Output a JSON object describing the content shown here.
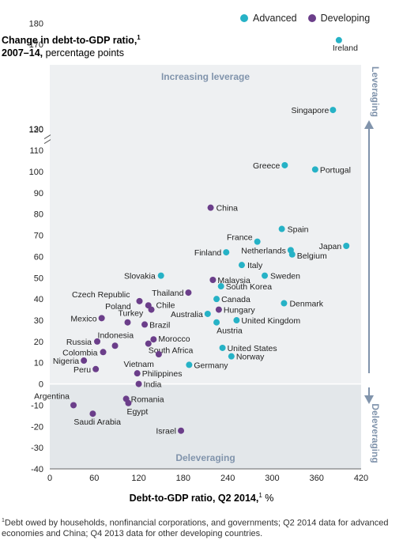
{
  "legend": {
    "advanced": "Advanced",
    "developing": "Developing"
  },
  "colors": {
    "advanced": "#26b2c6",
    "developing": "#6b3e8a",
    "leverage_bg": "#eef0f2",
    "deleverage_bg": "#e3e7ea",
    "region_label": "#8194ac",
    "arrow": "#8194ac"
  },
  "y_title_line1": "Change in debt-to-GDP ratio,",
  "y_title_sup": "1",
  "y_title_line2_bold": "2007–14,",
  "y_title_line2_rest": " percentage points",
  "footnote_sup": "1",
  "footnote": "Debt owed by households, nonfinancial corporations, and governments; Q2 2014 data for advanced economies and China; Q4 2013 data for other developing countries.",
  "chart_data": {
    "type": "scatter",
    "title": "",
    "xlabel": "Debt-to-GDP ratio, Q2 2014,",
    "xlabel_sup": "1",
    "xlabel_unit": " %",
    "xlim": [
      0,
      420
    ],
    "ylim": [
      -40,
      180
    ],
    "y_axis_break": "between 110 and 130",
    "x_ticks": [
      "0",
      "60",
      "120",
      "180",
      "240",
      "300",
      "360",
      "420"
    ],
    "y_ticks": [
      "180",
      "170",
      "130",
      "120",
      "110",
      "100",
      "90",
      "80",
      "70",
      "60",
      "50",
      "40",
      "30",
      "20",
      "10",
      "0",
      "-10",
      "-20",
      "-30",
      "-40"
    ],
    "regions": {
      "top": "Increasing leverage",
      "bottom": "Deleveraging",
      "right_top": "Leveraging",
      "right_bottom": "Deleveraging"
    },
    "grid": false,
    "legend_position": "top-right",
    "series": [
      {
        "name": "Advanced",
        "points": [
          {
            "label": "Ireland",
            "x": 390,
            "y": 172
          },
          {
            "label": "Singapore",
            "x": 382,
            "y": 129
          },
          {
            "label": "Greece",
            "x": 317,
            "y": 103
          },
          {
            "label": "Portugal",
            "x": 358,
            "y": 101
          },
          {
            "label": "Spain",
            "x": 313,
            "y": 73
          },
          {
            "label": "France",
            "x": 280,
            "y": 67
          },
          {
            "label": "Finland",
            "x": 238,
            "y": 62
          },
          {
            "label": "Netherlands",
            "x": 325,
            "y": 63
          },
          {
            "label": "Belgium",
            "x": 327,
            "y": 61
          },
          {
            "label": "Japan",
            "x": 400,
            "y": 65
          },
          {
            "label": "Italy",
            "x": 259,
            "y": 56
          },
          {
            "label": "Sweden",
            "x": 290,
            "y": 51
          },
          {
            "label": "Slovakia",
            "x": 150,
            "y": 51
          },
          {
            "label": "South Korea",
            "x": 231,
            "y": 46
          },
          {
            "label": "Canada",
            "x": 225,
            "y": 40
          },
          {
            "label": "Denmark",
            "x": 316,
            "y": 38
          },
          {
            "label": "Australia",
            "x": 213,
            "y": 33
          },
          {
            "label": "United Kingdom",
            "x": 252,
            "y": 30
          },
          {
            "label": "Austria",
            "x": 225,
            "y": 29
          },
          {
            "label": "United States",
            "x": 233,
            "y": 17
          },
          {
            "label": "Norway",
            "x": 245,
            "y": 13
          },
          {
            "label": "Germany",
            "x": 188,
            "y": 9
          }
        ]
      },
      {
        "name": "Developing",
        "points": [
          {
            "label": "China",
            "x": 217,
            "y": 83
          },
          {
            "label": "Malaysia",
            "x": 220,
            "y": 49
          },
          {
            "label": "Thailand",
            "x": 187,
            "y": 43
          },
          {
            "label": "Czech Republic",
            "x": 121,
            "y": 39
          },
          {
            "label": "Poland",
            "x": 133,
            "y": 37
          },
          {
            "label": "Chile",
            "x": 137,
            "y": 35
          },
          {
            "label": "Hungary",
            "x": 228,
            "y": 35
          },
          {
            "label": "Mexico",
            "x": 70,
            "y": 31
          },
          {
            "label": "Turkey",
            "x": 105,
            "y": 29
          },
          {
            "label": "Brazil",
            "x": 128,
            "y": 28
          },
          {
            "label": "Indonesia",
            "x": 88,
            "y": 18
          },
          {
            "label": "Russia",
            "x": 64,
            "y": 20
          },
          {
            "label": "Colombia",
            "x": 72,
            "y": 15
          },
          {
            "label": "Morocco",
            "x": 140,
            "y": 21
          },
          {
            "label": "South Africa",
            "x": 133,
            "y": 19
          },
          {
            "label": "Vietnam",
            "x": 147,
            "y": 14
          },
          {
            "label": "Nigeria",
            "x": 46,
            "y": 11
          },
          {
            "label": "Peru",
            "x": 62,
            "y": 7
          },
          {
            "label": "Philippines",
            "x": 118,
            "y": 5
          },
          {
            "label": "India",
            "x": 120,
            "y": 0
          },
          {
            "label": "Romania",
            "x": 103,
            "y": -7
          },
          {
            "label": "Egypt",
            "x": 106,
            "y": -9
          },
          {
            "label": "Argentina",
            "x": 32,
            "y": -10
          },
          {
            "label": "Saudi Arabia",
            "x": 58,
            "y": -14
          },
          {
            "label": "Israel",
            "x": 177,
            "y": -22
          }
        ]
      }
    ]
  }
}
